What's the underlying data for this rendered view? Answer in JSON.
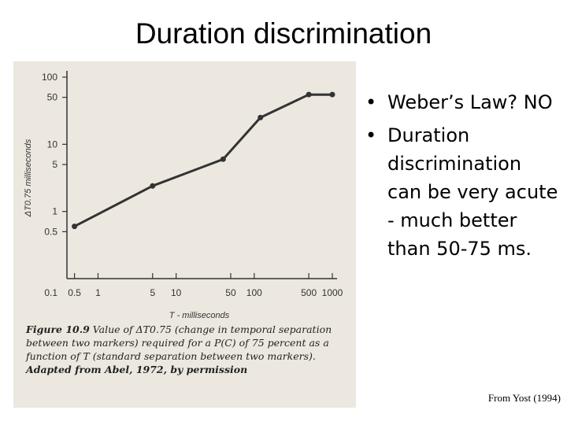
{
  "slide": {
    "title": "Duration discrimination"
  },
  "bullets": [
    {
      "text": "Weber’s Law? NO"
    },
    {
      "text": "Duration discrimination can be very acute - much better than 50-75 ms."
    }
  ],
  "figure_caption": {
    "lead": "Figure 10.9",
    "body": "Value of ΔT0.75 (change in temporal separation between two markers) required for a P(C) of 75 percent as a function of T (standard separation between two markers).",
    "credit": "Adapted from Abel, 1972, by permission"
  },
  "source_note": "From Yost (1994)",
  "colors": {
    "panel": "#ece8e0",
    "ink": "#333333"
  },
  "chart_data": {
    "type": "line",
    "xlabel": "T - milliseconds",
    "ylabel": "ΔT0.75 milliseconds",
    "xscale": "log",
    "yscale": "log",
    "xlim": [
      0.4,
      1000
    ],
    "ylim": [
      0.1,
      100
    ],
    "grid": false,
    "x_ticks": [
      {
        "value": 0.5,
        "label": "0.5"
      },
      {
        "value": 1,
        "label": "1"
      },
      {
        "value": 5,
        "label": "5"
      },
      {
        "value": 10,
        "label": "10"
      },
      {
        "value": 50,
        "label": "50"
      },
      {
        "value": 100,
        "label": "100"
      },
      {
        "value": 500,
        "label": "500"
      },
      {
        "value": 1000,
        "label": "1000"
      }
    ],
    "y_ticks": [
      {
        "value": 100,
        "label": "100"
      },
      {
        "value": 50,
        "label": "50"
      },
      {
        "value": 10,
        "label": "10"
      },
      {
        "value": 5,
        "label": "5"
      },
      {
        "value": 1,
        "label": "1"
      },
      {
        "value": 0.5,
        "label": "0.5"
      }
    ],
    "origin_label": "0.1",
    "series": [
      {
        "x": [
          0.5,
          5,
          40,
          120,
          500,
          1000
        ],
        "y": [
          0.6,
          2.4,
          6.0,
          25,
          55,
          55
        ]
      }
    ]
  }
}
